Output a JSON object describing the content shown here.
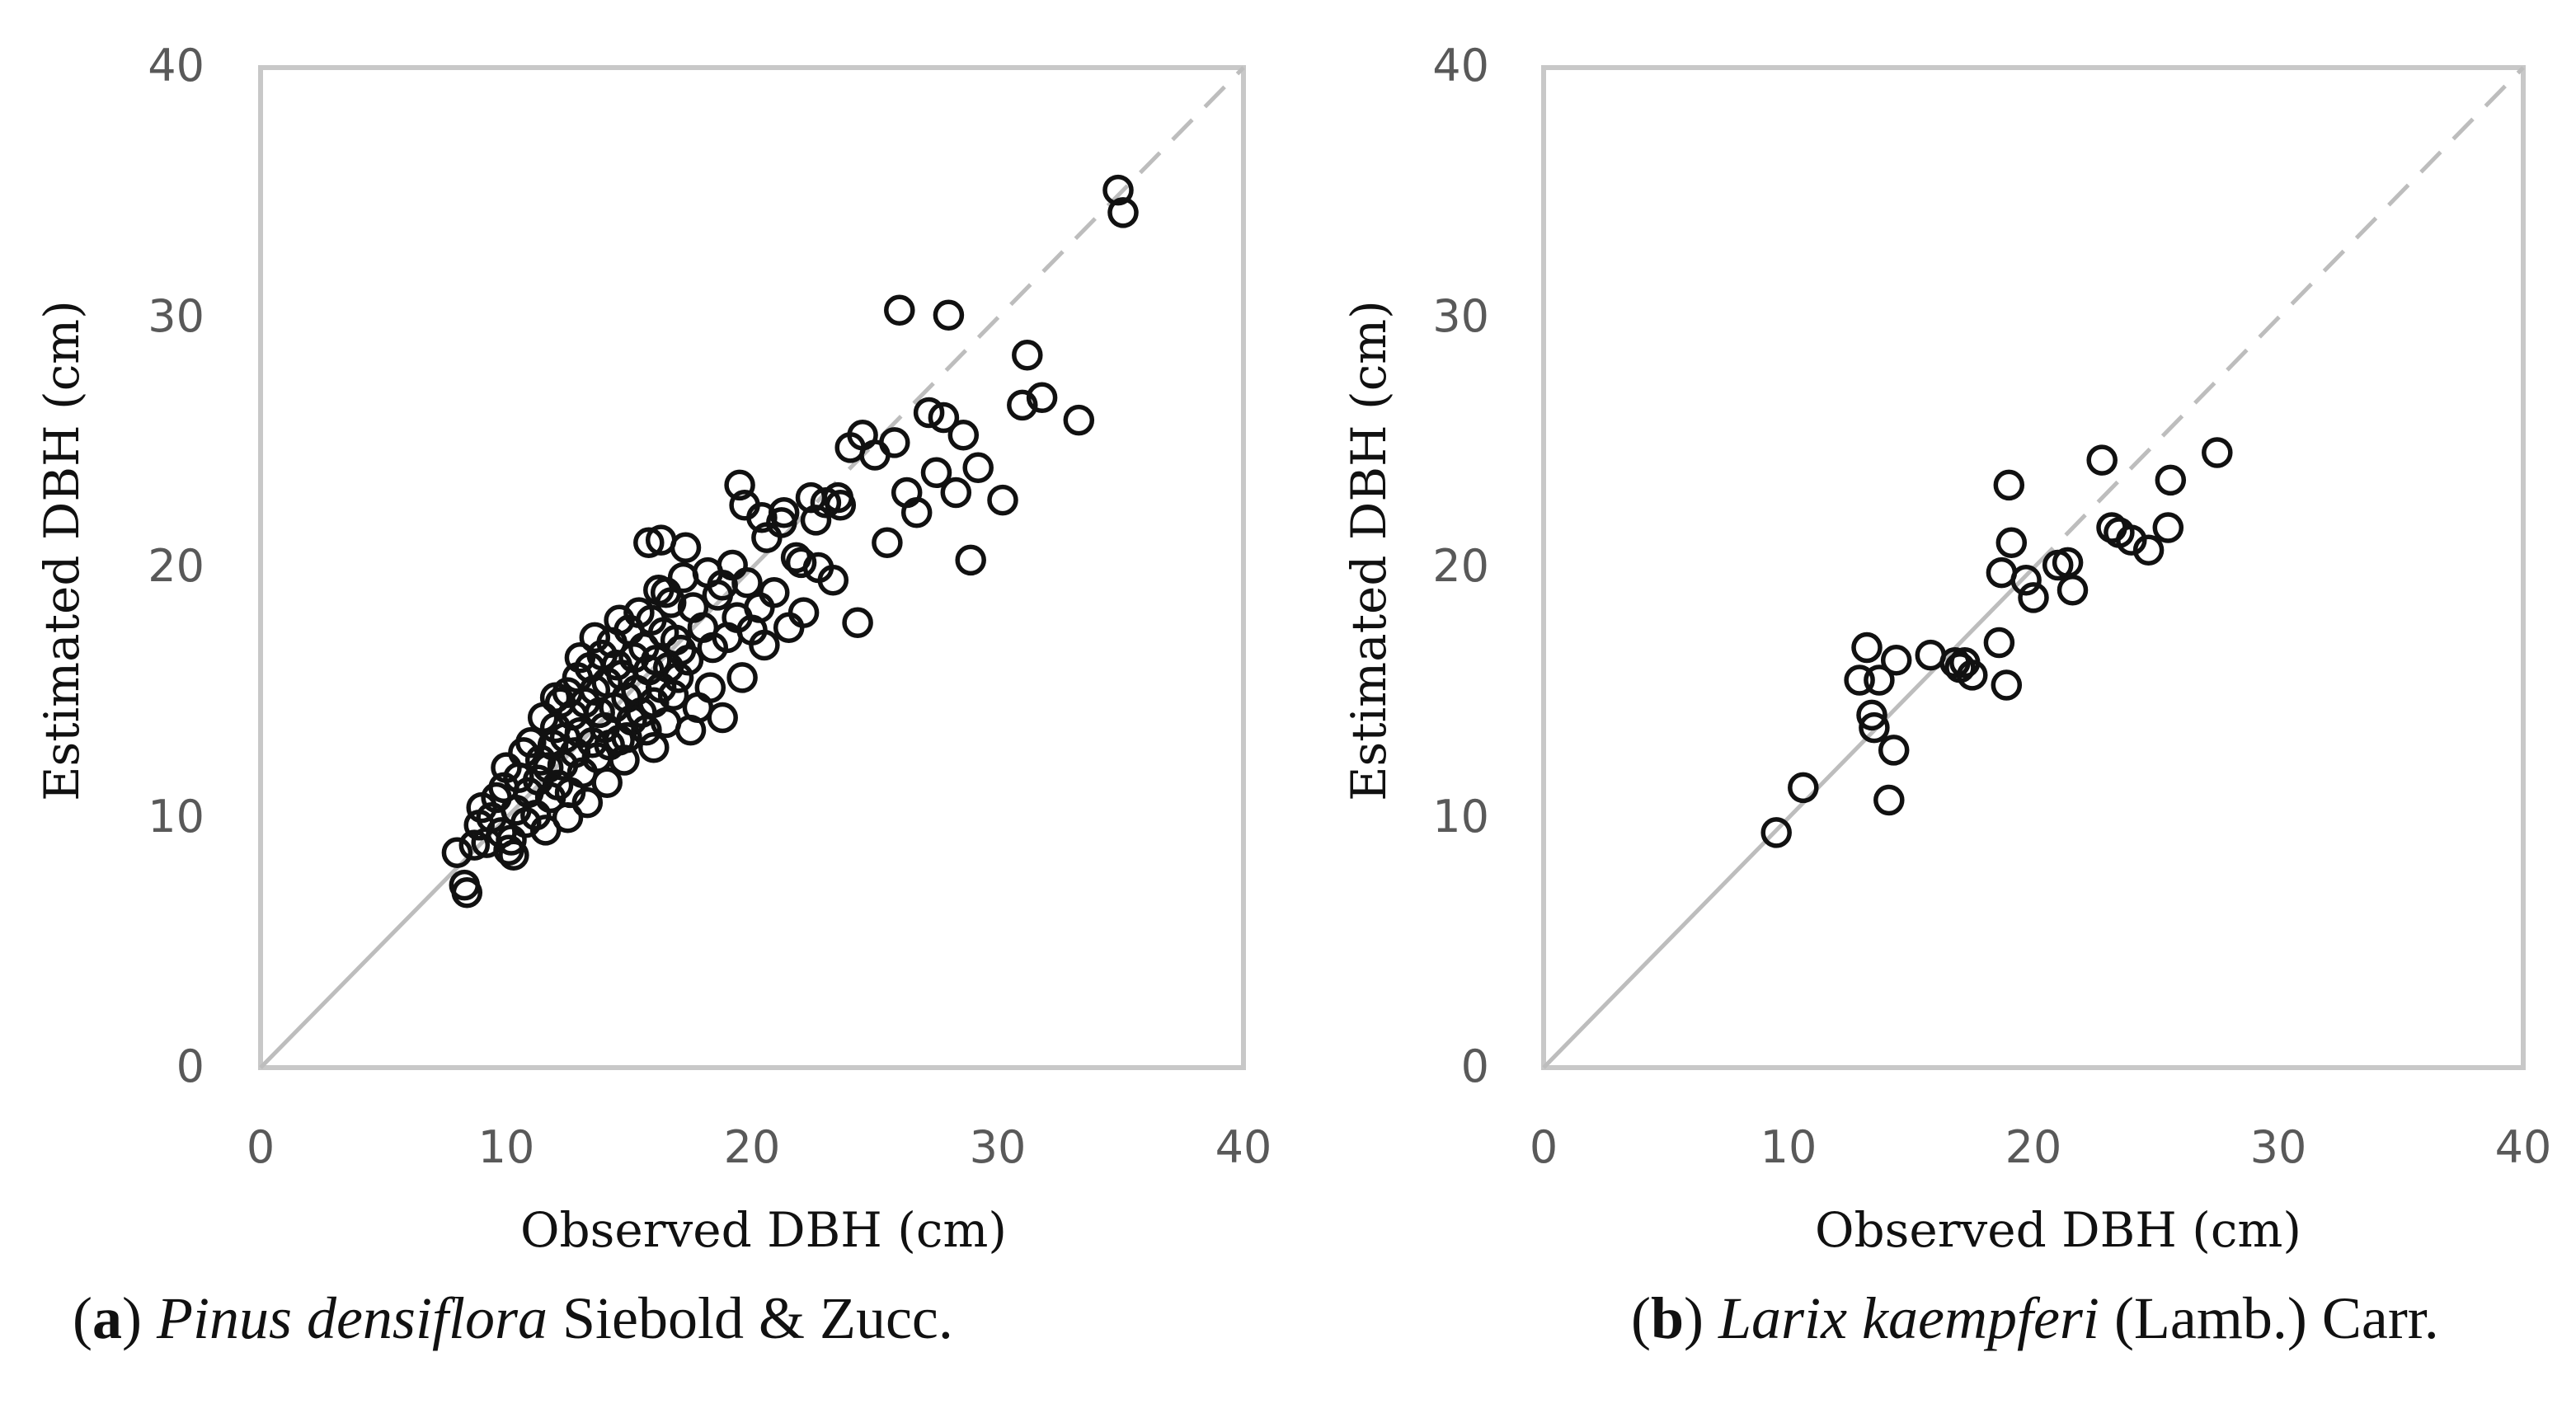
{
  "chart_data": [
    {
      "id": "a",
      "type": "scatter",
      "title": "",
      "xlabel": "Observed DBH (cm)",
      "ylabel": "Estimated DBH (cm)",
      "xlim": [
        0,
        40
      ],
      "ylim": [
        0,
        40
      ],
      "xticks": [
        "0",
        "10",
        "20",
        "30",
        "40"
      ],
      "yticks": [
        "0",
        "10",
        "20",
        "30",
        "40"
      ],
      "grid": false,
      "reference_line": "1:1",
      "caption": {
        "label": "a",
        "species": "Pinus densiflora",
        "authority": "Siebold & Zucc."
      },
      "points": [
        [
          8.3,
          7.3
        ],
        [
          8.4,
          7.0
        ],
        [
          8.0,
          8.6
        ],
        [
          8.7,
          8.9
        ],
        [
          8.9,
          9.7
        ],
        [
          9.0,
          10.4
        ],
        [
          9.2,
          9.0
        ],
        [
          9.4,
          10.0
        ],
        [
          9.6,
          10.8
        ],
        [
          9.8,
          9.4
        ],
        [
          9.9,
          11.2
        ],
        [
          10.0,
          12.0
        ],
        [
          10.1,
          8.7
        ],
        [
          10.3,
          8.5
        ],
        [
          10.4,
          10.3
        ],
        [
          10.5,
          11.6
        ],
        [
          10.7,
          12.6
        ],
        [
          10.8,
          9.8
        ],
        [
          10.9,
          11.0
        ],
        [
          11.0,
          13.0
        ],
        [
          11.2,
          10.1
        ],
        [
          11.3,
          11.5
        ],
        [
          11.4,
          12.3
        ],
        [
          11.5,
          14.0
        ],
        [
          11.6,
          9.5
        ],
        [
          11.8,
          10.8
        ],
        [
          11.9,
          12.9
        ],
        [
          12.0,
          13.6
        ],
        [
          12.1,
          11.3
        ],
        [
          12.2,
          14.6
        ],
        [
          12.3,
          12.1
        ],
        [
          12.4,
          13.2
        ],
        [
          12.5,
          15.0
        ],
        [
          12.6,
          11.0
        ],
        [
          12.7,
          14.1
        ],
        [
          12.8,
          12.6
        ],
        [
          12.9,
          15.6
        ],
        [
          13.0,
          13.4
        ],
        [
          13.1,
          11.8
        ],
        [
          13.2,
          14.6
        ],
        [
          13.3,
          10.6
        ],
        [
          13.4,
          16.0
        ],
        [
          13.5,
          13.0
        ],
        [
          13.6,
          15.1
        ],
        [
          13.7,
          12.4
        ],
        [
          13.8,
          14.2
        ],
        [
          13.9,
          16.5
        ],
        [
          14.0,
          13.6
        ],
        [
          14.1,
          15.4
        ],
        [
          14.2,
          12.9
        ],
        [
          14.3,
          17.0
        ],
        [
          14.4,
          14.4
        ],
        [
          14.5,
          16.1
        ],
        [
          14.6,
          13.1
        ],
        [
          14.7,
          15.7
        ],
        [
          14.8,
          12.3
        ],
        [
          14.9,
          14.8
        ],
        [
          15.0,
          17.5
        ],
        [
          15.1,
          13.9
        ],
        [
          15.2,
          16.4
        ],
        [
          15.3,
          15.1
        ],
        [
          15.4,
          18.2
        ],
        [
          15.5,
          14.2
        ],
        [
          15.6,
          16.8
        ],
        [
          15.7,
          13.5
        ],
        [
          15.8,
          15.9
        ],
        [
          15.9,
          17.9
        ],
        [
          16.0,
          14.6
        ],
        [
          16.1,
          16.3
        ],
        [
          16.2,
          19.1
        ],
        [
          16.3,
          15.2
        ],
        [
          16.4,
          17.4
        ],
        [
          16.5,
          13.8
        ],
        [
          16.6,
          16.0
        ],
        [
          16.7,
          18.6
        ],
        [
          16.8,
          14.9
        ],
        [
          16.9,
          17.1
        ],
        [
          17.0,
          15.6
        ],
        [
          17.2,
          19.6
        ],
        [
          17.4,
          16.3
        ],
        [
          17.6,
          18.4
        ],
        [
          17.8,
          14.4
        ],
        [
          18.0,
          17.6
        ],
        [
          18.2,
          19.8
        ],
        [
          18.4,
          16.8
        ],
        [
          18.6,
          18.9
        ],
        [
          18.8,
          14.0
        ],
        [
          19.0,
          17.2
        ],
        [
          19.2,
          20.1
        ],
        [
          19.4,
          18.0
        ],
        [
          19.6,
          15.6
        ],
        [
          19.8,
          19.4
        ],
        [
          20.0,
          17.5
        ],
        [
          20.3,
          18.4
        ],
        [
          20.6,
          21.2
        ],
        [
          20.9,
          19.0
        ],
        [
          21.2,
          21.8
        ],
        [
          21.5,
          17.6
        ],
        [
          21.8,
          20.4
        ],
        [
          22.1,
          18.2
        ],
        [
          22.4,
          22.8
        ],
        [
          22.7,
          20.0
        ],
        [
          23.0,
          22.6
        ],
        [
          23.3,
          19.5
        ],
        [
          23.6,
          22.5
        ],
        [
          24.0,
          24.8
        ],
        [
          24.3,
          17.8
        ],
        [
          24.5,
          25.3
        ],
        [
          25.0,
          24.5
        ],
        [
          25.5,
          21.0
        ],
        [
          25.8,
          25.0
        ],
        [
          26.0,
          30.3
        ],
        [
          26.3,
          23.0
        ],
        [
          26.7,
          22.2
        ],
        [
          27.2,
          26.2
        ],
        [
          27.5,
          23.8
        ],
        [
          27.8,
          26.0
        ],
        [
          28.0,
          30.1
        ],
        [
          28.3,
          23.0
        ],
        [
          28.6,
          25.3
        ],
        [
          28.9,
          20.3
        ],
        [
          29.2,
          24.0
        ],
        [
          30.2,
          22.7
        ],
        [
          31.0,
          26.5
        ],
        [
          31.2,
          28.5
        ],
        [
          31.8,
          26.8
        ],
        [
          33.3,
          25.9
        ],
        [
          34.9,
          35.1
        ],
        [
          35.1,
          34.2
        ],
        [
          12.5,
          10.0
        ],
        [
          15.8,
          21.0
        ],
        [
          16.3,
          21.1
        ],
        [
          16.5,
          19.0
        ],
        [
          17.3,
          20.8
        ],
        [
          19.5,
          23.3
        ],
        [
          19.7,
          22.5
        ],
        [
          20.4,
          22.0
        ],
        [
          22.6,
          21.9
        ],
        [
          21.3,
          22.2
        ],
        [
          10.2,
          9.1
        ],
        [
          11.7,
          12.0
        ],
        [
          13.0,
          16.4
        ],
        [
          14.1,
          11.4
        ],
        [
          14.9,
          13.2
        ],
        [
          16.0,
          12.8
        ],
        [
          17.5,
          13.5
        ],
        [
          18.3,
          15.2
        ],
        [
          12.0,
          14.8
        ],
        [
          13.6,
          17.2
        ],
        [
          14.6,
          17.9
        ],
        [
          17.1,
          16.7
        ],
        [
          18.8,
          19.3
        ],
        [
          20.5,
          16.9
        ],
        [
          22.0,
          20.2
        ],
        [
          23.5,
          22.8
        ]
      ]
    },
    {
      "id": "b",
      "type": "scatter",
      "title": "",
      "xlabel": "Observed DBH (cm)",
      "ylabel": "Estimated DBH (cm)",
      "xlim": [
        0,
        40
      ],
      "ylim": [
        0,
        40
      ],
      "xticks": [
        "0",
        "10",
        "20",
        "30",
        "40"
      ],
      "yticks": [
        "0",
        "10",
        "20",
        "30",
        "40"
      ],
      "grid": false,
      "reference_line": "1:1",
      "caption": {
        "label": "b",
        "species": "Larix kaempferi",
        "authority": "(Lamb.) Carr."
      },
      "points": [
        [
          9.5,
          9.4
        ],
        [
          10.6,
          11.2
        ],
        [
          12.9,
          15.5
        ],
        [
          13.2,
          16.8
        ],
        [
          13.4,
          14.1
        ],
        [
          13.5,
          13.6
        ],
        [
          13.7,
          15.5
        ],
        [
          14.1,
          10.7
        ],
        [
          14.3,
          12.7
        ],
        [
          14.4,
          16.3
        ],
        [
          15.8,
          16.5
        ],
        [
          16.8,
          16.2
        ],
        [
          17.0,
          16.0
        ],
        [
          17.2,
          16.2
        ],
        [
          17.5,
          15.7
        ],
        [
          18.6,
          17.0
        ],
        [
          18.7,
          19.8
        ],
        [
          18.9,
          15.3
        ],
        [
          19.0,
          23.3
        ],
        [
          19.1,
          21.0
        ],
        [
          19.7,
          19.5
        ],
        [
          20.0,
          18.8
        ],
        [
          21.0,
          20.1
        ],
        [
          21.4,
          20.2
        ],
        [
          21.6,
          19.1
        ],
        [
          22.8,
          24.3
        ],
        [
          23.2,
          21.6
        ],
        [
          23.5,
          21.4
        ],
        [
          24.0,
          21.1
        ],
        [
          24.7,
          20.7
        ],
        [
          25.5,
          21.6
        ],
        [
          25.6,
          23.5
        ],
        [
          27.5,
          24.6
        ]
      ]
    }
  ]
}
